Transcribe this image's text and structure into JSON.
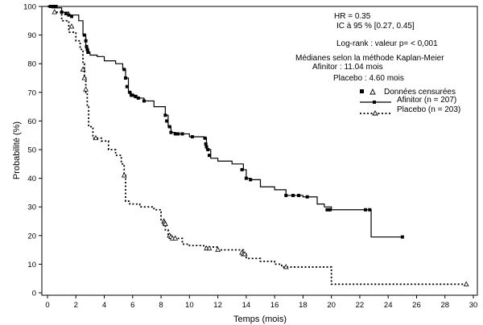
{
  "chart_data": {
    "type": "line",
    "title": "",
    "xlabel": "Temps (mois)",
    "ylabel": "Probabilité (%)",
    "xlim": [
      0,
      30
    ],
    "ylim": [
      0,
      100
    ],
    "xticks": [
      0,
      2,
      4,
      6,
      8,
      10,
      12,
      14,
      16,
      18,
      20,
      22,
      24,
      26,
      28,
      30
    ],
    "yticks": [
      0,
      10,
      20,
      30,
      40,
      50,
      60,
      70,
      80,
      90,
      100
    ],
    "grid": false,
    "legend_position": "top-right",
    "annotations": [
      "HR = 0.35",
      "IC à 95 % [0.27, 0.45]",
      "Log-rank : valeur p= < 0,001",
      "Médianes selon la méthode Kaplan-Meier",
      "Afinitor : 11.04 mois",
      "Placebo : 4.60 mois"
    ],
    "legend_title": "Données censurées",
    "series": [
      {
        "name": "Afinitor (n = 207)",
        "style": "solid",
        "marker": "square",
        "x": [
          0,
          0.3,
          1.0,
          1.5,
          2.2,
          2.5,
          2.7,
          2.8,
          2.9,
          3.0,
          3.5,
          4.0,
          4.8,
          5.3,
          5.5,
          5.7,
          5.9,
          6.3,
          6.8,
          7.5,
          8.3,
          8.5,
          8.7,
          9.0,
          10.0,
          11.0,
          11.2,
          11.5,
          12.0,
          13.0,
          13.8,
          14.0,
          14.3,
          15.0,
          16.0,
          16.8,
          18.0,
          19.0,
          19.5,
          20.0,
          22.0,
          22.8,
          25.0
        ],
        "y": [
          100,
          99.5,
          98,
          97,
          95,
          90,
          86,
          85,
          84,
          83,
          82.5,
          81,
          80,
          78,
          75,
          70,
          69,
          68,
          67,
          65,
          62,
          58,
          56,
          55.5,
          54.5,
          54,
          50,
          47,
          46,
          45,
          43,
          40,
          39.5,
          37,
          36,
          34,
          33.5,
          31,
          30,
          29,
          29,
          19.5,
          19.5
        ],
        "censored_x": [
          0.2,
          0.4,
          0.6,
          1.0,
          1.3,
          1.5,
          1.7,
          2.6,
          2.7,
          2.75,
          2.8,
          2.85,
          5.4,
          5.5,
          5.6,
          5.8,
          5.9,
          6.0,
          6.2,
          6.4,
          6.8,
          8.3,
          8.4,
          8.6,
          8.7,
          9.0,
          9.2,
          9.5,
          10.2,
          11.1,
          11.15,
          11.2,
          11.3,
          11.4,
          13.7,
          14.0,
          14.3,
          16.8,
          17.3,
          17.7,
          18.3,
          19.7,
          19.9,
          22.4,
          22.7,
          25.0
        ],
        "censored_y": [
          100,
          100,
          100,
          98,
          97.5,
          97,
          96.5,
          90,
          88,
          86,
          85,
          84,
          78,
          75,
          72,
          70,
          69,
          69,
          68.5,
          68,
          67,
          62,
          60,
          58,
          56,
          55.5,
          55.5,
          55.5,
          54.5,
          54,
          52,
          51,
          50,
          48,
          43,
          40,
          39.5,
          34,
          34,
          34,
          33.5,
          29,
          29,
          29,
          29,
          19.5
        ]
      },
      {
        "name": "Placebo (n = 203)",
        "style": "dotted",
        "marker": "triangle",
        "x": [
          0,
          0.5,
          1.0,
          1.5,
          2.0,
          2.3,
          2.5,
          2.6,
          2.7,
          2.8,
          2.9,
          3.2,
          3.8,
          4.3,
          4.8,
          5.2,
          5.4,
          5.5,
          5.8,
          6.5,
          7.5,
          8.0,
          8.3,
          8.5,
          8.8,
          9.5,
          10.0,
          11.0,
          12.0,
          13.5,
          13.8,
          14.0,
          15.0,
          16.0,
          16.5,
          17.0,
          19.5,
          20.0,
          29.5
        ],
        "y": [
          100,
          98,
          95,
          91,
          88,
          85,
          80,
          75,
          70,
          65,
          58,
          54,
          53,
          50,
          48,
          45,
          41,
          32,
          31,
          30,
          29,
          25,
          22,
          20,
          19,
          17,
          16.5,
          16,
          15,
          15,
          13.5,
          12,
          11,
          10,
          9,
          9,
          9,
          3,
          3
        ],
        "censored_x": [
          0.5,
          1.7,
          2.5,
          2.6,
          2.7,
          3.4,
          5.4,
          8.2,
          8.25,
          8.3,
          8.6,
          8.7,
          8.8,
          9.0,
          11.2,
          11.4,
          12.0,
          13.7,
          13.8,
          13.9,
          16.8,
          29.5
        ],
        "censored_y": [
          98,
          93,
          78,
          75,
          71,
          54,
          41,
          25,
          24.5,
          24,
          20,
          19.5,
          19,
          19,
          15.5,
          15.5,
          15,
          14,
          13.5,
          13.5,
          9,
          3
        ]
      }
    ]
  }
}
